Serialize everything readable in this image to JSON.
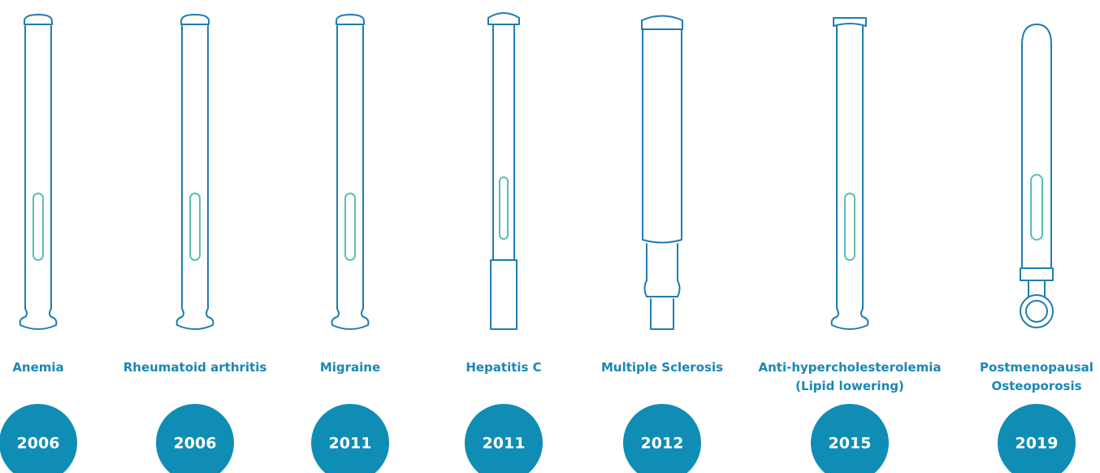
{
  "items": [
    {
      "label_lines": [
        "Anemia"
      ],
      "year": "2006"
    },
    {
      "label_lines": [
        "Rheumatoid arthritis"
      ],
      "year": "2006"
    },
    {
      "label_lines": [
        "Migraine"
      ],
      "year": "2011"
    },
    {
      "label_lines": [
        "Hepatitis C"
      ],
      "year": "2011"
    },
    {
      "label_lines": [
        "Multiple Sclerosis"
      ],
      "year": "2012"
    },
    {
      "label_lines": [
        "Anti-hypercholesterolemia",
        "(Lipid lowering)"
      ],
      "year": "2015"
    },
    {
      "label_lines": [
        "Postmenopausal",
        "Osteoporosis"
      ],
      "year": "2019"
    }
  ]
}
